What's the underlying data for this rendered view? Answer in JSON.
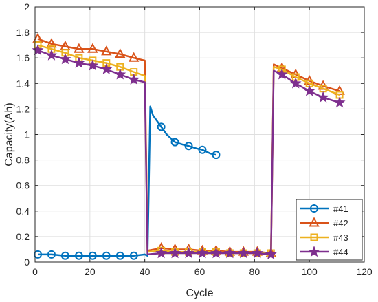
{
  "chart_data": {
    "type": "line",
    "title": "",
    "xlabel": "Cycle",
    "ylabel": "Capacity(Ah)",
    "xlim": [
      0,
      120
    ],
    "ylim": [
      0,
      2
    ],
    "xticks": [
      0,
      20,
      40,
      60,
      80,
      100,
      120
    ],
    "yticks": [
      0,
      0.2,
      0.4,
      0.6,
      0.8,
      1,
      1.2,
      1.4,
      1.6,
      1.8,
      2
    ],
    "grid": true,
    "legend_position": "bottom-right",
    "series": [
      {
        "name": "#41",
        "color": "#0072BD",
        "marker": "circle",
        "x": [
          1,
          6,
          11,
          16,
          21,
          26,
          31,
          36,
          40,
          41,
          42,
          43,
          46,
          48,
          51,
          54,
          56,
          59,
          61,
          64,
          66
        ],
        "y": [
          0.06,
          0.06,
          0.05,
          0.05,
          0.05,
          0.05,
          0.05,
          0.05,
          0.06,
          0.05,
          1.22,
          1.15,
          1.06,
          1.0,
          0.94,
          0.92,
          0.91,
          0.89,
          0.88,
          0.85,
          0.84
        ],
        "marker_x": [
          1,
          6,
          11,
          16,
          21,
          26,
          31,
          36,
          46,
          51,
          56,
          61,
          66
        ],
        "marker_y": [
          0.06,
          0.06,
          0.05,
          0.05,
          0.05,
          0.05,
          0.05,
          0.05,
          1.06,
          0.94,
          0.91,
          0.88,
          0.84
        ]
      },
      {
        "name": "#42",
        "color": "#D95319",
        "marker": "triangle",
        "x": [
          1,
          6,
          11,
          16,
          21,
          26,
          31,
          36,
          40,
          41,
          46,
          51,
          56,
          61,
          66,
          71,
          76,
          81,
          86,
          87,
          90,
          95,
          100,
          105,
          111
        ],
        "y": [
          1.75,
          1.71,
          1.69,
          1.67,
          1.67,
          1.65,
          1.63,
          1.6,
          1.58,
          0.09,
          0.11,
          0.1,
          0.1,
          0.09,
          0.09,
          0.08,
          0.08,
          0.08,
          0.07,
          1.55,
          1.52,
          1.47,
          1.42,
          1.38,
          1.34
        ],
        "marker_x": [
          1,
          6,
          11,
          16,
          21,
          26,
          31,
          36,
          46,
          51,
          56,
          61,
          66,
          71,
          76,
          81,
          86,
          90,
          95,
          100,
          105,
          111
        ],
        "marker_y": [
          1.75,
          1.71,
          1.69,
          1.67,
          1.67,
          1.65,
          1.63,
          1.6,
          0.11,
          0.1,
          0.1,
          0.09,
          0.09,
          0.08,
          0.08,
          0.08,
          0.07,
          1.52,
          1.47,
          1.42,
          1.38,
          1.34
        ]
      },
      {
        "name": "#43",
        "color": "#EDB120",
        "marker": "square",
        "x": [
          1,
          6,
          11,
          16,
          21,
          26,
          31,
          36,
          40,
          41,
          46,
          51,
          56,
          61,
          66,
          71,
          76,
          81,
          86,
          87,
          90,
          95,
          100,
          105,
          111
        ],
        "y": [
          1.7,
          1.67,
          1.64,
          1.6,
          1.58,
          1.56,
          1.53,
          1.49,
          1.46,
          0.08,
          0.09,
          0.08,
          0.08,
          0.08,
          0.08,
          0.07,
          0.07,
          0.07,
          0.07,
          1.53,
          1.51,
          1.45,
          1.4,
          1.36,
          1.31
        ],
        "marker_x": [
          1,
          6,
          11,
          16,
          21,
          26,
          31,
          36,
          46,
          51,
          56,
          61,
          66,
          71,
          76,
          81,
          86,
          90,
          95,
          100,
          105,
          111
        ],
        "marker_y": [
          1.7,
          1.67,
          1.64,
          1.6,
          1.58,
          1.56,
          1.53,
          1.49,
          0.09,
          0.08,
          0.08,
          0.08,
          0.08,
          0.07,
          0.07,
          0.07,
          0.07,
          1.51,
          1.45,
          1.4,
          1.36,
          1.31
        ]
      },
      {
        "name": "#44",
        "color": "#7E2F8E",
        "marker": "star",
        "x": [
          1,
          6,
          11,
          16,
          21,
          26,
          31,
          36,
          40,
          41,
          46,
          51,
          56,
          61,
          66,
          71,
          76,
          81,
          86,
          87,
          90,
          95,
          100,
          105,
          111
        ],
        "y": [
          1.66,
          1.62,
          1.59,
          1.56,
          1.54,
          1.51,
          1.47,
          1.43,
          1.41,
          0.06,
          0.07,
          0.07,
          0.07,
          0.07,
          0.07,
          0.07,
          0.07,
          0.07,
          0.06,
          1.5,
          1.47,
          1.4,
          1.34,
          1.29,
          1.25
        ],
        "marker_x": [
          1,
          6,
          11,
          16,
          21,
          26,
          31,
          36,
          46,
          51,
          56,
          61,
          66,
          71,
          76,
          81,
          86,
          90,
          95,
          100,
          105,
          111
        ],
        "marker_y": [
          1.66,
          1.62,
          1.59,
          1.56,
          1.54,
          1.51,
          1.47,
          1.43,
          0.07,
          0.07,
          0.07,
          0.07,
          0.07,
          0.07,
          0.07,
          0.07,
          0.06,
          1.47,
          1.4,
          1.34,
          1.29,
          1.25
        ]
      }
    ]
  }
}
